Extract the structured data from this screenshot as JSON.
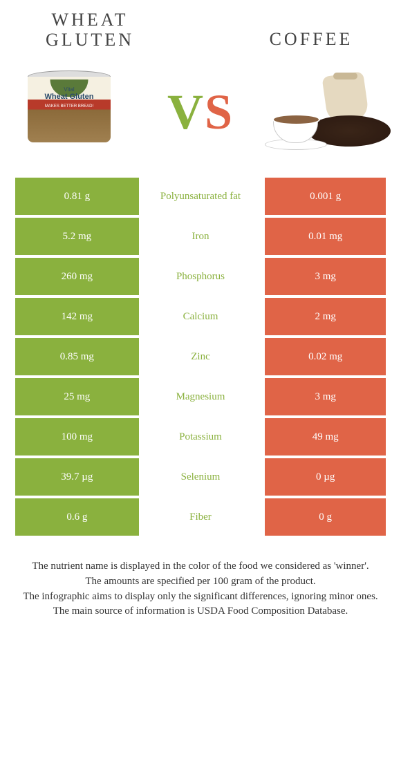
{
  "header": {
    "left_title_line1": "Wheat",
    "left_title_line2": "gluten",
    "right_title": "Coffee"
  },
  "vs": {
    "v": "V",
    "s": "S"
  },
  "colors": {
    "left": "#8ab13e",
    "right": "#e06447",
    "background": "#ffffff"
  },
  "nutrients": [
    {
      "name": "Polyunsaturated fat",
      "left": "0.81 g",
      "right": "0.001 g",
      "winner": "left"
    },
    {
      "name": "Iron",
      "left": "5.2 mg",
      "right": "0.01 mg",
      "winner": "left"
    },
    {
      "name": "Phosphorus",
      "left": "260 mg",
      "right": "3 mg",
      "winner": "left"
    },
    {
      "name": "Calcium",
      "left": "142 mg",
      "right": "2 mg",
      "winner": "left"
    },
    {
      "name": "Zinc",
      "left": "0.85 mg",
      "right": "0.02 mg",
      "winner": "left"
    },
    {
      "name": "Magnesium",
      "left": "25 mg",
      "right": "3 mg",
      "winner": "left"
    },
    {
      "name": "Potassium",
      "left": "100 mg",
      "right": "49 mg",
      "winner": "left"
    },
    {
      "name": "Selenium",
      "left": "39.7 µg",
      "right": "0 µg",
      "winner": "left"
    },
    {
      "name": "Fiber",
      "left": "0.6 g",
      "right": "0 g",
      "winner": "left"
    }
  ],
  "footnotes": [
    "The nutrient name is displayed in the color of the food we considered as 'winner'.",
    "The amounts are specified per 100 gram of the product.",
    "The infographic aims to display only the significant differences, ignoring minor ones.",
    "The main source of information is USDA Food Composition Database."
  ]
}
